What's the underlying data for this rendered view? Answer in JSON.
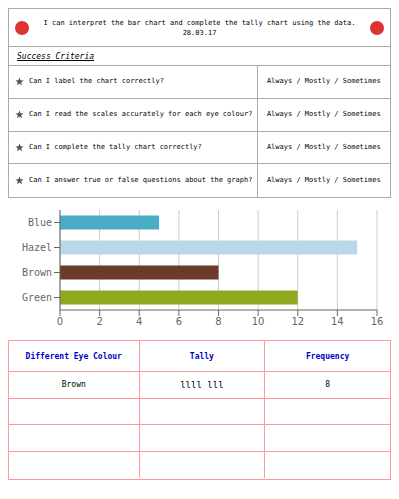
{
  "chart_data": {
    "type": "bar",
    "orientation": "horizontal",
    "title": "I can interpret the bar chart and complete the tally chart using the data.",
    "subtitle": "28.03.17",
    "categories": [
      "Blue",
      "Hazel",
      "Brown",
      "Green"
    ],
    "values": [
      5,
      15,
      8,
      12
    ],
    "colors": [
      "#4bacc6",
      "#b8d8e8",
      "#6b3a2a",
      "#8faa1c"
    ],
    "xlim": [
      0,
      16
    ],
    "xticks": [
      0,
      2,
      4,
      6,
      8,
      10,
      12,
      14,
      16
    ],
    "grid": true,
    "annotations": [
      "Success Criteria",
      "Can I label the chart correctly?",
      "Can I read the scales accurately for each eye colour?",
      "Can I complete the tally chart correctly?",
      "Can I answer true or false questions about the graph?",
      "Always / Mostly / Sometimes",
      "Different Eye Colour",
      "Tally",
      "Frequency",
      "Brown",
      "llll lll",
      "8"
    ]
  }
}
